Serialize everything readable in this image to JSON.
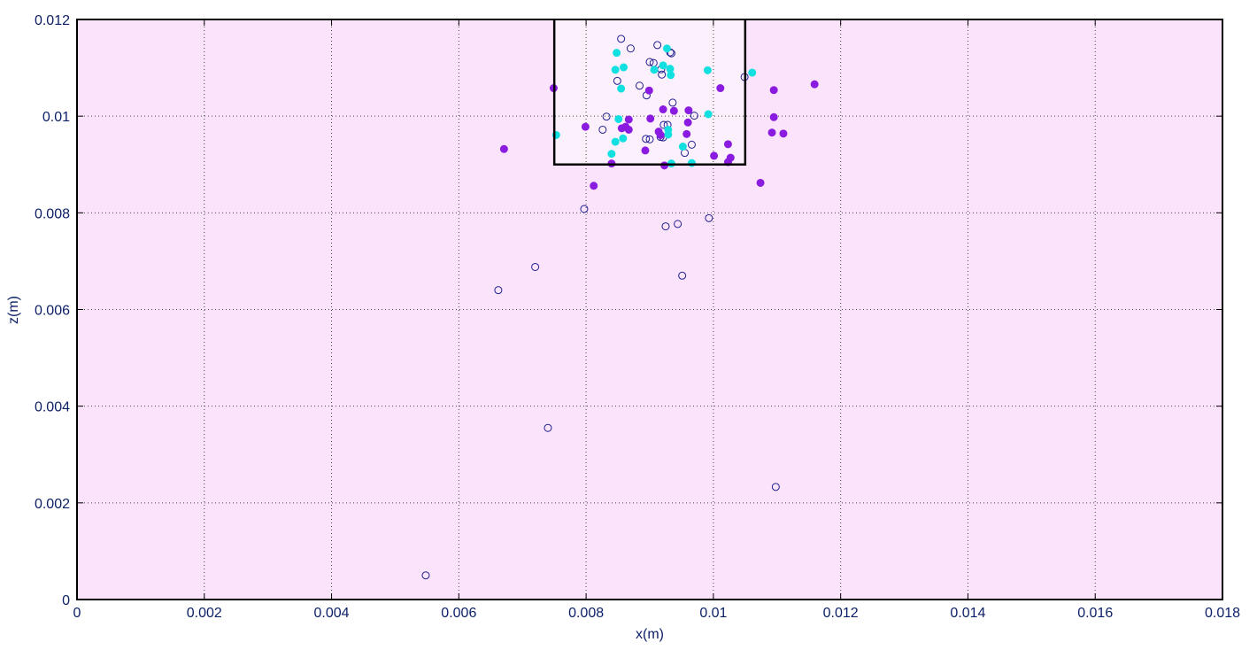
{
  "chart_data": {
    "type": "scatter",
    "title": "",
    "xlabel": "x(m)",
    "ylabel": "z(m)",
    "xlim": [
      0,
      0.018
    ],
    "ylim": [
      0,
      0.012
    ],
    "grid": true,
    "x_ticks": [
      "0",
      "0.002",
      "0.004",
      "0.006",
      "0.008",
      "0.01",
      "0.012",
      "0.014",
      "0.016",
      "0.018"
    ],
    "y_ticks": [
      "0",
      "0.002",
      "0.004",
      "0.006",
      "0.008",
      "0.01",
      "0.012"
    ],
    "box": {
      "x_min": 0.0075,
      "x_max": 0.0105,
      "z_min": 0.009,
      "z_max": 0.012
    },
    "colors": {
      "background": "#fbe4fb",
      "box_fill": "#fdf0fd",
      "open": "#1f1f8f",
      "cyan": "#12e0e0",
      "purple": "#8a1be0"
    },
    "series": [
      {
        "marker": "open-circle",
        "color": "#1f1f8f",
        "points": [
          [
            0.00548,
            0.0005
          ],
          [
            0.0074,
            0.00355
          ],
          [
            0.01098,
            0.00233
          ],
          [
            0.00662,
            0.0064
          ],
          [
            0.0072,
            0.00688
          ],
          [
            0.00951,
            0.0067
          ],
          [
            0.00797,
            0.00808
          ],
          [
            0.00925,
            0.00772
          ],
          [
            0.00944,
            0.00777
          ],
          [
            0.00993,
            0.00789
          ],
          [
            0.00855,
            0.0116
          ],
          [
            0.0087,
            0.0114
          ],
          [
            0.00912,
            0.01147
          ],
          [
            0.00932,
            0.01132
          ],
          [
            0.00934,
            0.0113
          ],
          [
            0.009,
            0.01112
          ],
          [
            0.00906,
            0.0111
          ],
          [
            0.00918,
            0.01097
          ],
          [
            0.00919,
            0.01086
          ],
          [
            0.00849,
            0.01073
          ],
          [
            0.00884,
            0.01063
          ],
          [
            0.00895,
            0.01043
          ],
          [
            0.01049,
            0.01081
          ],
          [
            0.00936,
            0.01028
          ],
          [
            0.0097,
            0.01001
          ],
          [
            0.00832,
            0.00999
          ],
          [
            0.00826,
            0.00972
          ],
          [
            0.00922,
            0.00982
          ],
          [
            0.00928,
            0.00982
          ],
          [
            0.00894,
            0.00953
          ],
          [
            0.009,
            0.00952
          ],
          [
            0.00917,
            0.00957
          ],
          [
            0.00921,
            0.00956
          ],
          [
            0.00966,
            0.00941
          ],
          [
            0.00955,
            0.00924
          ]
        ]
      },
      {
        "marker": "filled-circle",
        "color": "#12e0e0",
        "points": [
          [
            0.00927,
            0.0114
          ],
          [
            0.00848,
            0.01131
          ],
          [
            0.00846,
            0.01096
          ],
          [
            0.00859,
            0.01101
          ],
          [
            0.00907,
            0.01096
          ],
          [
            0.00921,
            0.01105
          ],
          [
            0.00932,
            0.01098
          ],
          [
            0.00933,
            0.01085
          ],
          [
            0.00991,
            0.01095
          ],
          [
            0.01061,
            0.0109
          ],
          [
            0.00855,
            0.01057
          ],
          [
            0.00851,
            0.00994
          ],
          [
            0.00992,
            0.01004
          ],
          [
            0.00753,
            0.00961
          ],
          [
            0.00858,
            0.00954
          ],
          [
            0.00846,
            0.00947
          ],
          [
            0.0084,
            0.00922
          ],
          [
            0.00929,
            0.00962
          ],
          [
            0.00929,
            0.00972
          ],
          [
            0.00952,
            0.00937
          ],
          [
            0.00934,
            0.00902
          ],
          [
            0.00966,
            0.00903
          ]
        ]
      },
      {
        "marker": "filled-circle",
        "color": "#8a1be0",
        "points": [
          [
            0.00749,
            0.01058
          ],
          [
            0.00671,
            0.00932
          ],
          [
            0.00799,
            0.00978
          ],
          [
            0.00812,
            0.00856
          ],
          [
            0.0084,
            0.00902
          ],
          [
            0.00862,
            0.00978
          ],
          [
            0.00867,
            0.00993
          ],
          [
            0.00867,
            0.00972
          ],
          [
            0.00856,
            0.00975
          ],
          [
            0.00893,
            0.00929
          ],
          [
            0.00899,
            0.01053
          ],
          [
            0.00901,
            0.00995
          ],
          [
            0.00914,
            0.00968
          ],
          [
            0.00917,
            0.00961
          ],
          [
            0.00921,
            0.01014
          ],
          [
            0.00923,
            0.00898
          ],
          [
            0.00938,
            0.01011
          ],
          [
            0.00958,
            0.00963
          ],
          [
            0.0096,
            0.00987
          ],
          [
            0.00961,
            0.01012
          ],
          [
            0.01001,
            0.00918
          ],
          [
            0.01011,
            0.01058
          ],
          [
            0.01023,
            0.00942
          ],
          [
            0.01023,
            0.00905
          ],
          [
            0.01027,
            0.00914
          ],
          [
            0.01074,
            0.00862
          ],
          [
            0.01092,
            0.00966
          ],
          [
            0.01095,
            0.01054
          ],
          [
            0.01095,
            0.00998
          ],
          [
            0.0111,
            0.00964
          ],
          [
            0.01159,
            0.01066
          ]
        ]
      }
    ]
  }
}
